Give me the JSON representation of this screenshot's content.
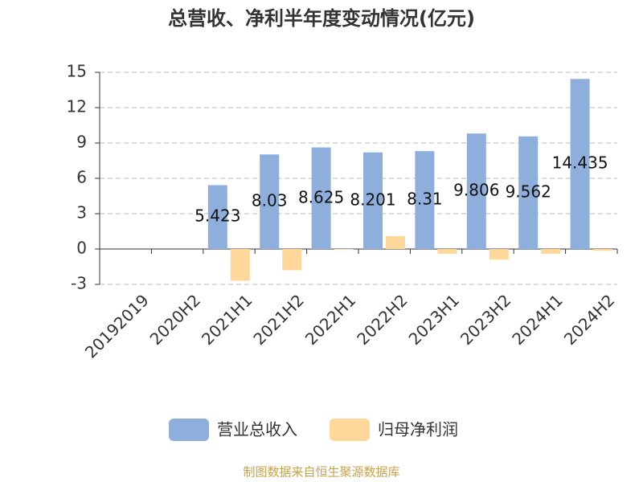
{
  "chart_data": {
    "type": "bar",
    "title": "总营收、净利半年度变动情况(亿元)",
    "categories": [
      "20192019",
      "2020H2",
      "2021H1",
      "2021H2",
      "2022H1",
      "2022H2",
      "2023H1",
      "2023H2",
      "2024H1",
      "2024H2"
    ],
    "series": [
      {
        "name": "营业总收入",
        "color": "#8eaedc",
        "values": [
          null,
          null,
          5.423,
          8.03,
          8.625,
          8.201,
          8.31,
          9.806,
          9.562,
          14.435
        ]
      },
      {
        "name": "归母净利润",
        "color": "#fdd89a",
        "values": [
          null,
          null,
          -2.7,
          -1.8,
          -0.05,
          1.1,
          -0.4,
          -0.9,
          -0.4,
          -0.15
        ]
      }
    ],
    "ylim": [
      -3,
      15
    ],
    "yticks": [
      -3,
      0,
      3,
      6,
      9,
      12,
      15
    ],
    "grid": true,
    "legend": "bottom",
    "source": "制图数据来自恒生聚源数据库"
  }
}
